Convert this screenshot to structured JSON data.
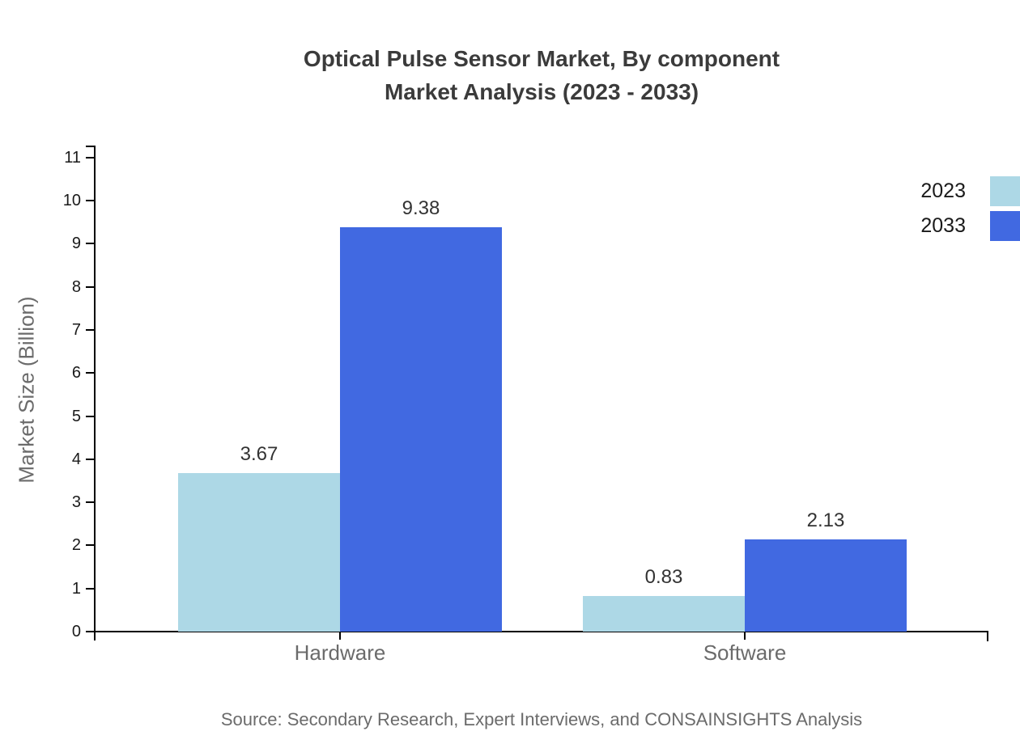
{
  "title": {
    "line1": "Optical Pulse Sensor Market, By component",
    "line2": "Market Analysis (2023 - 2033)"
  },
  "source": "Source: Secondary Research, Expert Interviews, and CONSAINSIGHTS Analysis",
  "chart_data": {
    "type": "bar",
    "title": "Optical Pulse Sensor Market, By component Market Analysis (2023 - 2033)",
    "categories": [
      "Hardware",
      "Software"
    ],
    "series": [
      {
        "name": "2023",
        "color": "#ADD8E6",
        "values": [
          3.67,
          0.83
        ],
        "labels": [
          "3.67",
          "0.83"
        ]
      },
      {
        "name": "2033",
        "color": "#4169E1",
        "values": [
          9.38,
          2.13
        ],
        "labels": [
          "9.38",
          "2.13"
        ]
      }
    ],
    "xlabel": "",
    "ylabel": "Market Size (Billion)",
    "ylim": [
      0,
      11
    ],
    "yticks": [
      0,
      1,
      2,
      3,
      4,
      5,
      6,
      7,
      8,
      9,
      10,
      11
    ],
    "grid": false,
    "legend_position": "top-right"
  }
}
